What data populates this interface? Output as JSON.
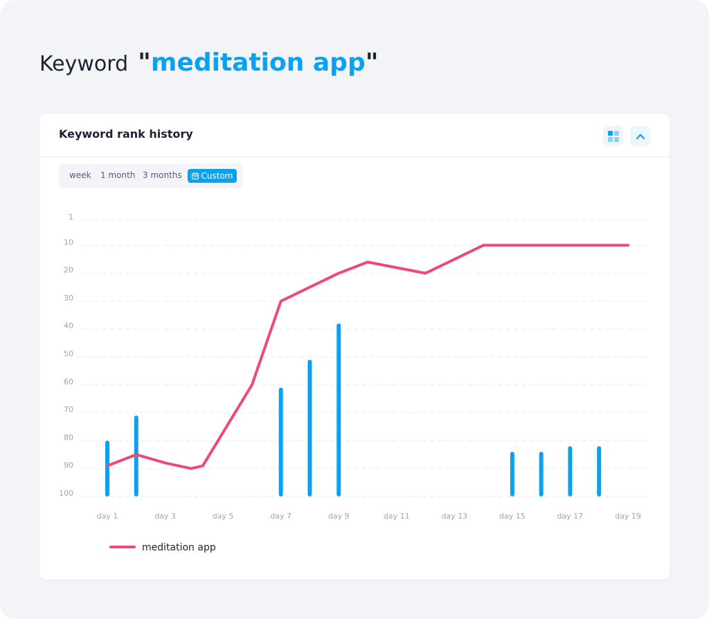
{
  "heading": {
    "prefix": "Keyword",
    "open_quote": "\"",
    "keyword": "meditation app",
    "close_quote": "\""
  },
  "card": {
    "title": "Keyword rank history",
    "grid_icon": "grid-view-icon",
    "collapse_icon": "chevron-up-icon"
  },
  "range_options": {
    "week": "week",
    "month": "1 month",
    "three_months": "3 months",
    "custom": "Custom",
    "custom_icon": "calendar-icon",
    "selected": "Custom"
  },
  "colors": {
    "accent": "#0aa2ef",
    "line": "#ef4a71",
    "bar": "#0aa2ef",
    "text": "#1c2233",
    "muted": "#9ea4b4"
  },
  "chart_data": {
    "type": "line",
    "title": "",
    "xlabel": "",
    "ylabel": "",
    "x_tick_labels": [
      "day 1",
      "day 3",
      "day 5",
      "day 7",
      "day 9",
      "day 11",
      "day 13",
      "day 15",
      "day 17",
      "day 19"
    ],
    "y_tick_labels": [
      "1",
      "10",
      "20",
      "30",
      "40",
      "50",
      "60",
      "70",
      "80",
      "90",
      "100"
    ],
    "y_ticks": [
      1,
      10,
      20,
      30,
      40,
      50,
      60,
      70,
      80,
      90,
      100
    ],
    "ylim": [
      100,
      0
    ],
    "y_inverted": true,
    "xlim": [
      1,
      19
    ],
    "grid": true,
    "grid_style": "dashed",
    "legend_position": "bottom-left",
    "series": [
      {
        "name": "meditation app",
        "type": "line",
        "color": "#ef4a71",
        "points": [
          [
            1,
            89
          ],
          [
            2,
            85
          ],
          [
            3,
            88
          ],
          [
            3.9,
            90
          ],
          [
            4.3,
            89
          ],
          [
            6,
            60
          ],
          [
            7,
            30
          ],
          [
            9,
            20
          ],
          [
            10,
            16
          ],
          [
            12,
            20
          ],
          [
            14,
            10
          ],
          [
            19,
            10
          ]
        ]
      },
      {
        "type": "bar",
        "color": "#0aa2ef",
        "points": [
          [
            1,
            80
          ],
          [
            2,
            71
          ],
          [
            7,
            61
          ],
          [
            8,
            51
          ],
          [
            9,
            38
          ],
          [
            15,
            84
          ],
          [
            16,
            84
          ],
          [
            17,
            82
          ],
          [
            18,
            82
          ]
        ]
      }
    ]
  }
}
